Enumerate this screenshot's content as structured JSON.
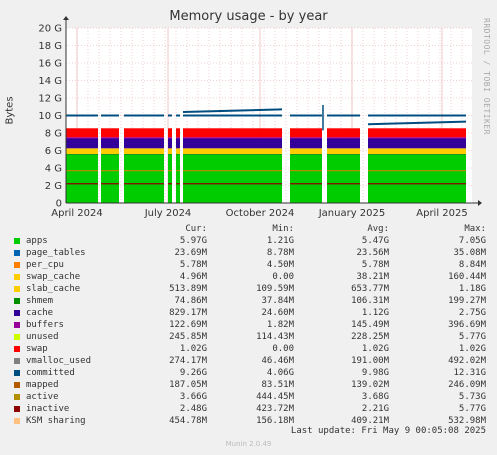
{
  "title": "Memory usage - by year",
  "side_label": "RRDTOOL / TOBI OETIKER",
  "ylabel": "Bytes",
  "columns": {
    "cur": "Cur:",
    "min": "Min:",
    "avg": "Avg:",
    "max": "Max:"
  },
  "legend": [
    {
      "name": "apps",
      "color": "#00cc00",
      "cur": "5.97G",
      "min": "1.21G",
      "avg": "5.47G",
      "max": "7.05G"
    },
    {
      "name": "page_tables",
      "color": "#0066b3",
      "cur": "23.69M",
      "min": "8.78M",
      "avg": "23.56M",
      "max": "35.08M"
    },
    {
      "name": "per_cpu",
      "color": "#ff8000",
      "cur": "5.78M",
      "min": "4.50M",
      "avg": "5.78M",
      "max": "8.84M"
    },
    {
      "name": "swap_cache",
      "color": "#ffcc00",
      "cur": "4.96M",
      "min": "0.00",
      "avg": "38.21M",
      "max": "160.44M"
    },
    {
      "name": "slab_cache",
      "color": "#ffcc00",
      "cur": "513.89M",
      "min": "109.59M",
      "avg": "653.77M",
      "max": "1.18G"
    },
    {
      "name": "shmem",
      "color": "#008f00",
      "cur": "74.86M",
      "min": "37.84M",
      "avg": "106.31M",
      "max": "199.27M"
    },
    {
      "name": "cache",
      "color": "#330099",
      "cur": "829.17M",
      "min": "24.60M",
      "avg": "1.12G",
      "max": "2.75G"
    },
    {
      "name": "buffers",
      "color": "#990099",
      "cur": "122.69M",
      "min": "1.82M",
      "avg": "145.49M",
      "max": "396.69M"
    },
    {
      "name": "unused",
      "color": "#ccff00",
      "cur": "245.85M",
      "min": "114.43M",
      "avg": "228.25M",
      "max": "5.77G"
    },
    {
      "name": "swap",
      "color": "#ff0000",
      "cur": "1.02G",
      "min": "0.00",
      "avg": "1.02G",
      "max": "1.02G"
    },
    {
      "name": "vmalloc_used",
      "color": "#808080",
      "cur": "274.17M",
      "min": "46.46M",
      "avg": "191.00M",
      "max": "492.02M"
    },
    {
      "name": "committed",
      "color": "#004d80",
      "cur": "9.26G",
      "min": "4.06G",
      "avg": "9.98G",
      "max": "12.31G"
    },
    {
      "name": "mapped",
      "color": "#b35a00",
      "cur": "187.05M",
      "min": "83.51M",
      "avg": "139.02M",
      "max": "246.09M"
    },
    {
      "name": "active",
      "color": "#b38f00",
      "cur": "3.66G",
      "min": "444.45M",
      "avg": "3.68G",
      "max": "5.73G"
    },
    {
      "name": "inactive",
      "color": "#8f0000",
      "cur": "2.48G",
      "min": "423.72M",
      "avg": "2.21G",
      "max": "5.77G"
    },
    {
      "name": "KSM sharing",
      "color": "#ffc080",
      "cur": "454.78M",
      "min": "156.18M",
      "avg": "409.21M",
      "max": "532.98M"
    }
  ],
  "last_update": "Last update: Fri May  9 00:05:08 2025",
  "footer": "Munin 2.0.49",
  "chart_data": {
    "type": "area",
    "title": "Memory usage - by year",
    "ylabel": "Bytes",
    "y_ticks": [
      "0",
      "2 G",
      "4 G",
      "6 G",
      "8 G",
      "10 G",
      "12 G",
      "14 G",
      "16 G",
      "18 G",
      "20 G"
    ],
    "ylim": [
      0,
      20
    ],
    "x_ticks": [
      "April 2024",
      "July 2024",
      "October 2024",
      "January 2025",
      "April 2025"
    ],
    "grid": true,
    "stacked_levels_gb": {
      "apps": 5.5,
      "shmem": 0.1,
      "slab_cache": 0.65,
      "cache": 1.12,
      "buffers": 0.15,
      "swap": 1.02,
      "committed_line": 10.0,
      "active_line": 3.7,
      "inactive_line": 2.2
    }
  }
}
